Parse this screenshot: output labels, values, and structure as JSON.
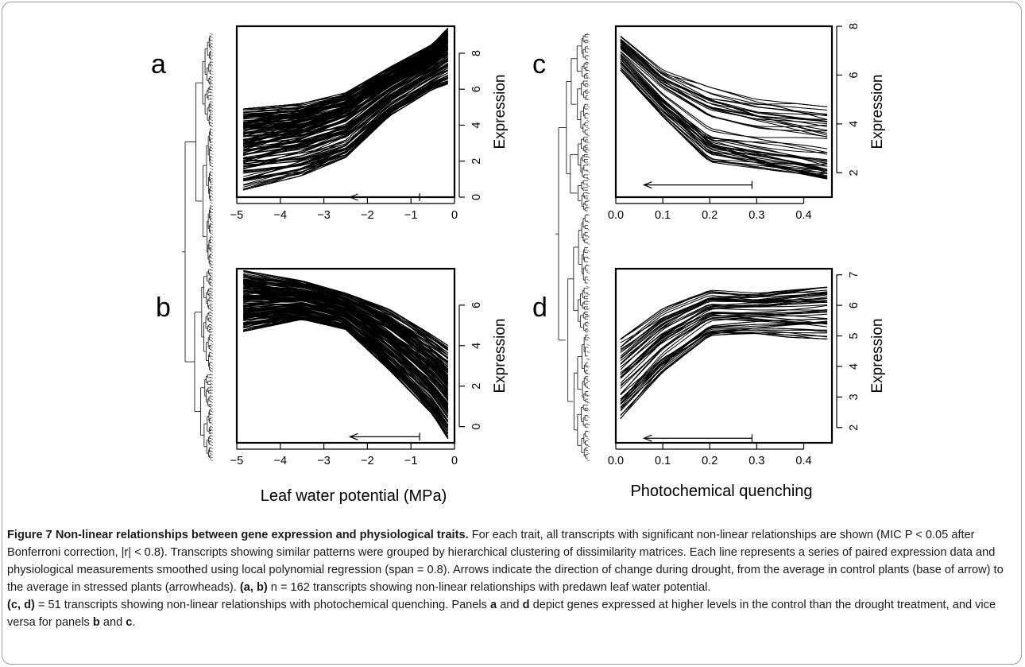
{
  "figure": {
    "panels": [
      {
        "letter": "a",
        "ylabel": "Expression",
        "xticks": [
          "−5",
          "−4",
          "−3",
          "−2",
          "−1",
          "0"
        ],
        "yticks": [
          "0",
          "2",
          "4",
          "6",
          "8"
        ]
      },
      {
        "letter": "b",
        "ylabel": "Expression",
        "xticks": [
          "−5",
          "−4",
          "−3",
          "−2",
          "−1",
          "0"
        ],
        "yticks": [
          "0",
          "2",
          "4",
          "6"
        ]
      },
      {
        "letter": "c",
        "ylabel": "Expression",
        "xticks": [
          "0.0",
          "0.1",
          "0.2",
          "0.3",
          "0.4"
        ],
        "yticks": [
          "2",
          "4",
          "6",
          "8"
        ]
      },
      {
        "letter": "d",
        "ylabel": "Expression",
        "xticks": [
          "0.0",
          "0.1",
          "0.2",
          "0.3",
          "0.4"
        ],
        "yticks": [
          "2",
          "3",
          "4",
          "5",
          "6",
          "7"
        ]
      }
    ],
    "xlabels": {
      "left": "Leaf water potential (MPa)",
      "right": "Photochemical quenching"
    }
  },
  "chart_data": [
    {
      "type": "line",
      "panel": "a",
      "ylabel": "Expression",
      "xlim": [
        -5,
        0
      ],
      "ylim": [
        0,
        9.5
      ],
      "n_series": 162,
      "envelope": {
        "x": [
          -4.85,
          -3.5,
          -2.5,
          -1.5,
          -0.5,
          -0.15
        ],
        "y_low": [
          0.4,
          1.2,
          2.2,
          4.5,
          6.0,
          6.3
        ],
        "y_high": [
          4.9,
          5.2,
          5.8,
          7.2,
          8.5,
          9.4
        ]
      },
      "arrow": {
        "from_x": -0.8,
        "to_x": -2.4,
        "y": 0
      }
    },
    {
      "type": "line",
      "panel": "b",
      "ylabel": "Expression",
      "xlim": [
        -5,
        0
      ],
      "ylim": [
        -0.8,
        7.8
      ],
      "n_series": 162,
      "envelope": {
        "x": [
          -4.85,
          -3.5,
          -2.5,
          -1.5,
          -0.5,
          -0.15
        ],
        "y_low": [
          4.7,
          5.3,
          4.8,
          2.8,
          0.6,
          -0.6
        ],
        "y_high": [
          7.7,
          7.2,
          6.6,
          5.8,
          4.5,
          4.0
        ]
      },
      "arrow": {
        "from_x": -0.8,
        "to_x": -2.4,
        "y": -0.5
      }
    },
    {
      "type": "line",
      "panel": "c",
      "ylabel": "Expression",
      "xlim": [
        0,
        0.46
      ],
      "ylim": [
        1.0,
        8.0
      ],
      "n_series": 51,
      "envelope": {
        "x": [
          0.01,
          0.1,
          0.2,
          0.3,
          0.45
        ],
        "y_low": [
          6.2,
          4.3,
          2.4,
          2.1,
          1.6
        ],
        "y_high": [
          7.6,
          6.2,
          5.5,
          5.0,
          4.7
        ]
      },
      "arrow": {
        "from_x": 0.29,
        "to_x": 0.06,
        "y": 1.5
      }
    },
    {
      "type": "line",
      "panel": "d",
      "ylabel": "Expression",
      "xlim": [
        0,
        0.46
      ],
      "ylim": [
        1.5,
        7.2
      ],
      "n_series": 51,
      "envelope": {
        "x": [
          0.01,
          0.1,
          0.2,
          0.3,
          0.45
        ],
        "y_low": [
          2.2,
          3.7,
          4.9,
          5.0,
          4.9
        ],
        "y_high": [
          4.9,
          5.9,
          6.5,
          6.4,
          6.6
        ]
      },
      "arrow": {
        "from_x": 0.29,
        "to_x": 0.06,
        "y": 1.65
      }
    }
  ],
  "caption": {
    "title": "Figure 7 Non-linear relationships between gene expression and physiological traits.",
    "text1": " For each trait, all transcripts with significant non-linear relationships are shown (MIC P < 0.05 after Bonferroni correction, |r| < 0.8). Transcripts showing similar patterns were grouped by hierarchical clustering of dissimilarity matrices. Each line represents a series of paired expression data and physiological measurements smoothed using local polynomial regression (span = 0.8). Arrows indicate the direction of change during drought, from the average in control plants (base of arrow) to the average in stressed plants (arrowheads).",
    "ab_label": "(a, b)",
    "ab_text": " n = 162 transcripts showing non-linear relationships with predawn leaf water potential.",
    "cd_label": "(c, d)",
    "cd_text1": " = 51 transcripts showing non-linear relationships with photochemical quenching. Panels ",
    "a": "a",
    "and1": " and ",
    "d": "d",
    "cd_text2": " depict genes expressed at higher levels in the control than the drought treatment, and vice versa for panels ",
    "b": "b",
    "and2": " and ",
    "c": "c",
    "end": "."
  }
}
